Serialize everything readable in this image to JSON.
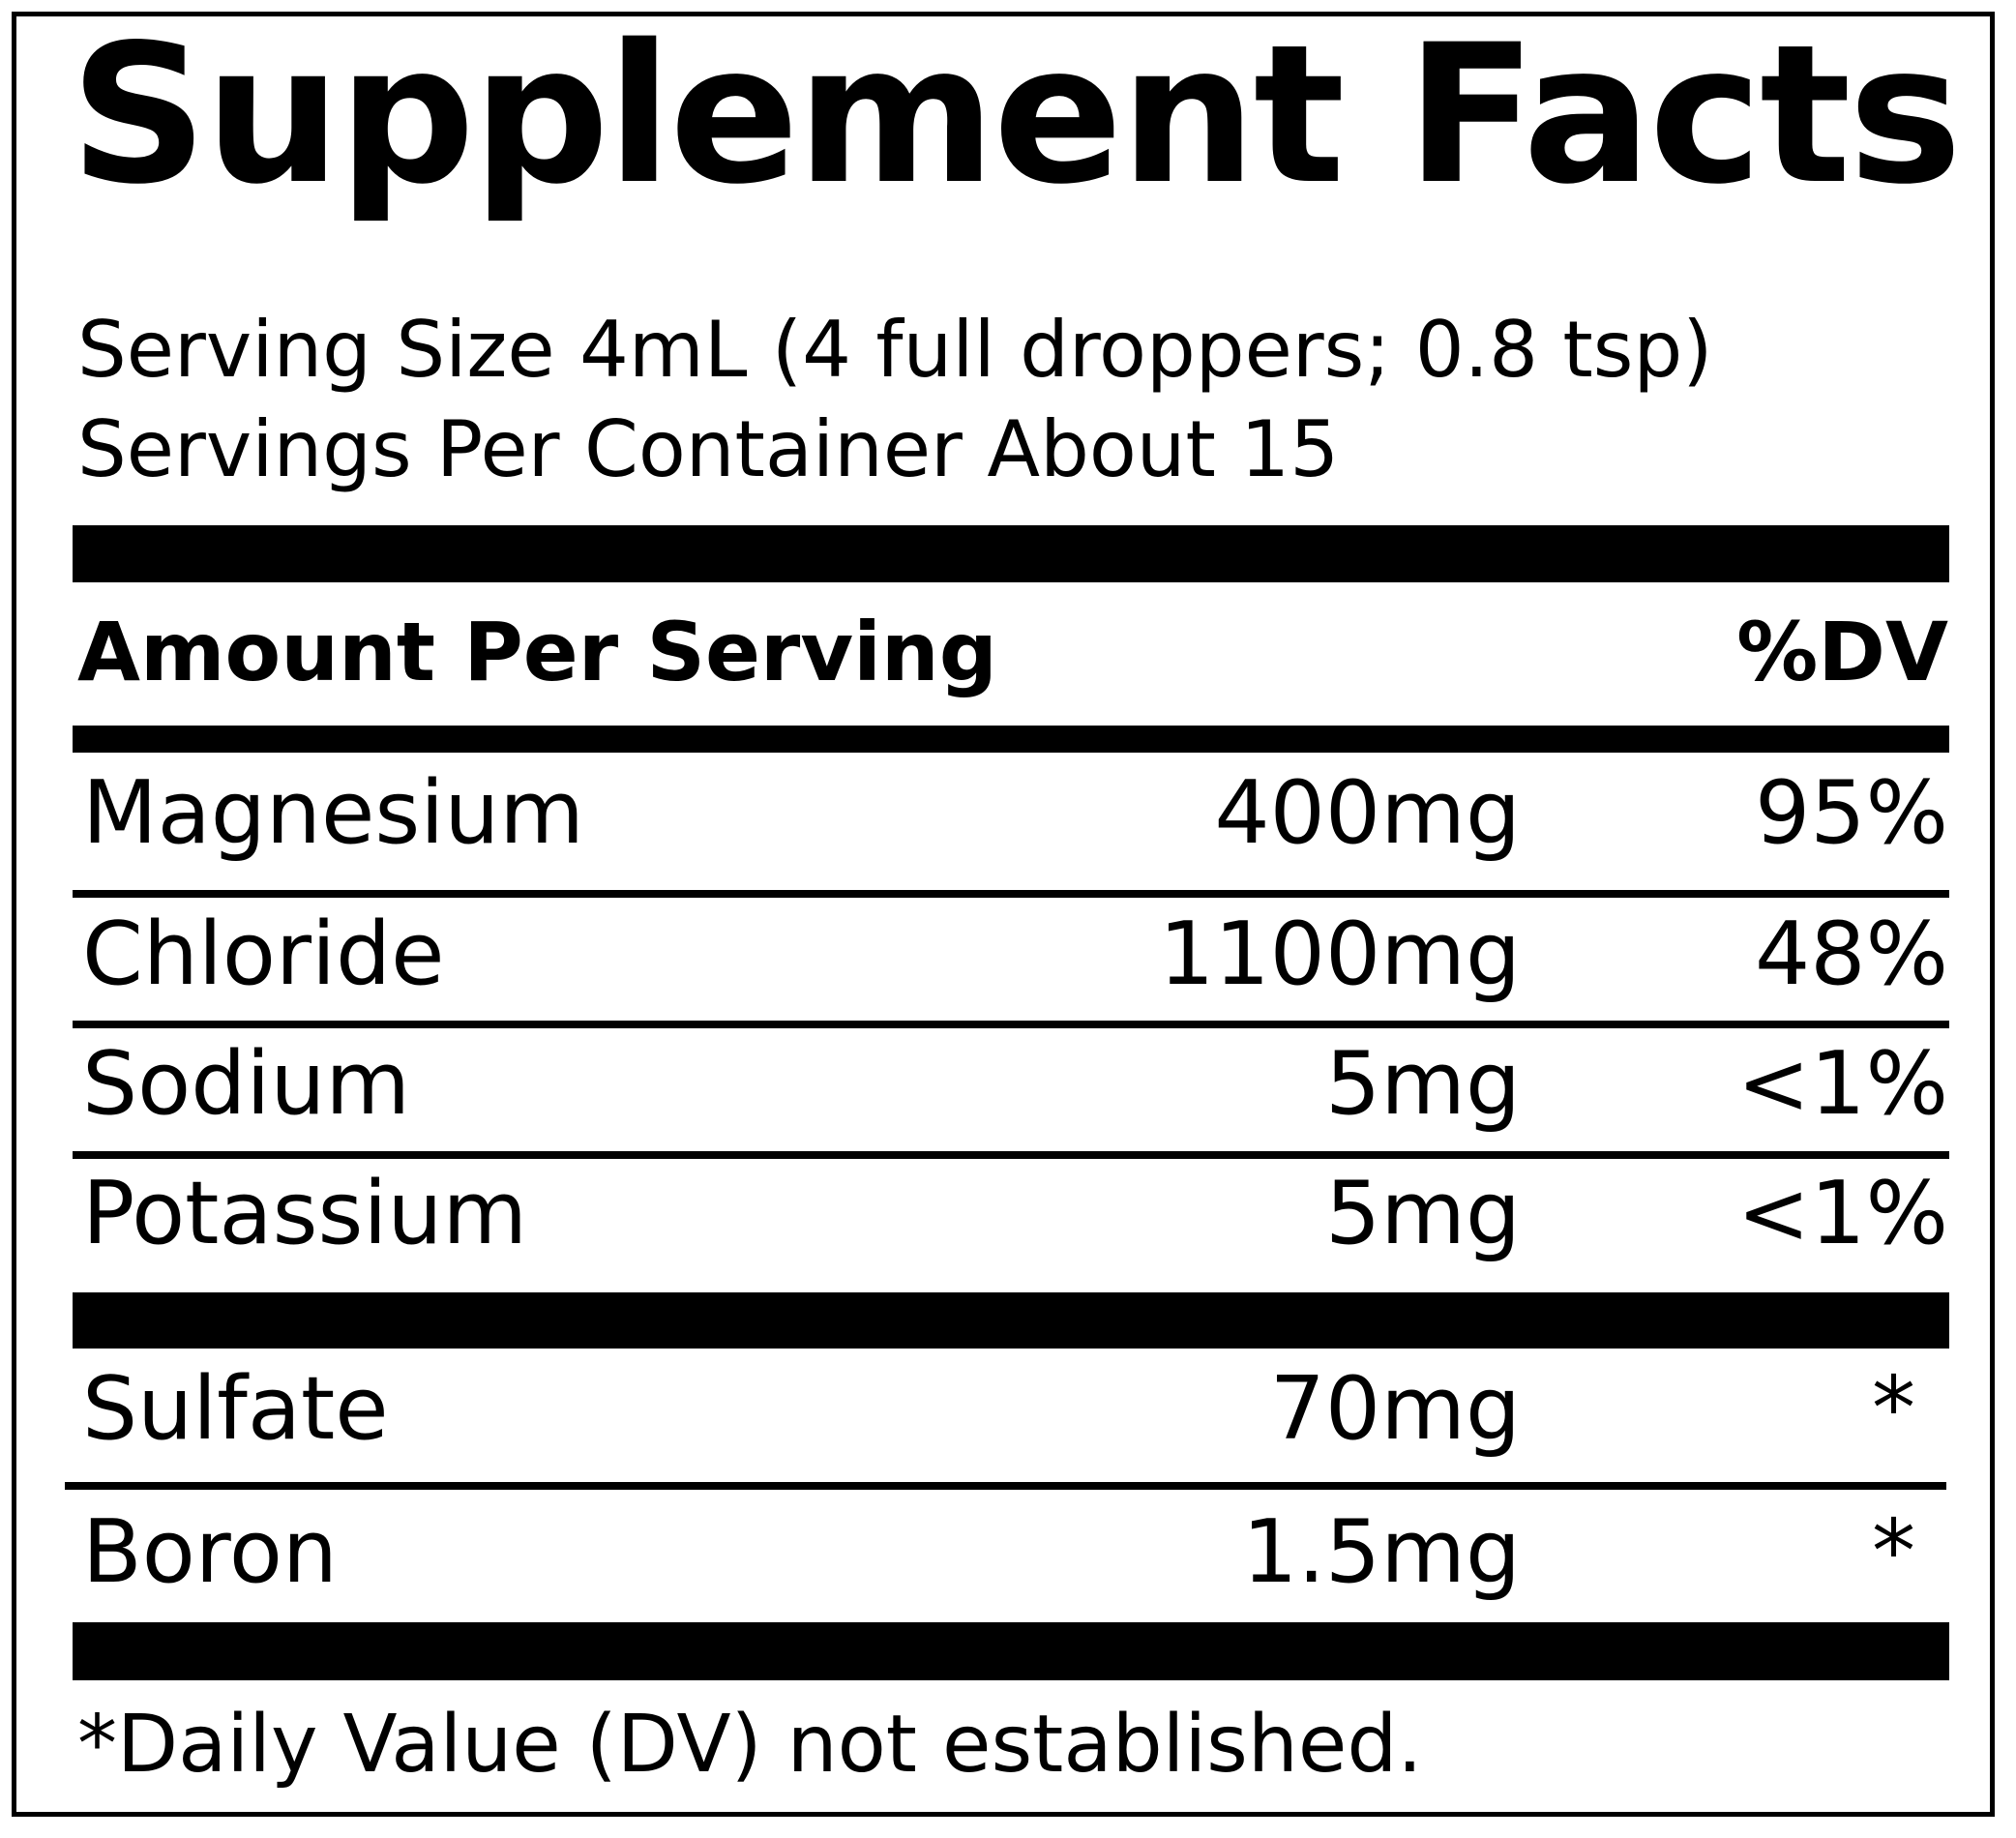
{
  "title": "Supplement Facts",
  "serving_size": "Serving Size 4mL (4 full droppers; 0.8 tsp)",
  "servings_per_container": "Servings Per Container About 15",
  "header": {
    "amount_label": "Amount Per Serving",
    "dv_label": "%DV"
  },
  "nutrients": [
    {
      "name": "Magnesium",
      "amount": "400mg",
      "dv": "95%"
    },
    {
      "name": "Chloride",
      "amount": "1100mg",
      "dv": "48%"
    },
    {
      "name": "Sodium",
      "amount": "5mg",
      "dv": "<1%"
    },
    {
      "name": "Potassium",
      "amount": "5mg",
      "dv": "<1%"
    }
  ],
  "other_nutrients": [
    {
      "name": "Sulfate",
      "amount": "70mg",
      "dv": "*"
    },
    {
      "name": "Boron",
      "amount": "1.5mg",
      "dv": "*"
    }
  ],
  "footnote": "*Daily Value (DV) not established."
}
